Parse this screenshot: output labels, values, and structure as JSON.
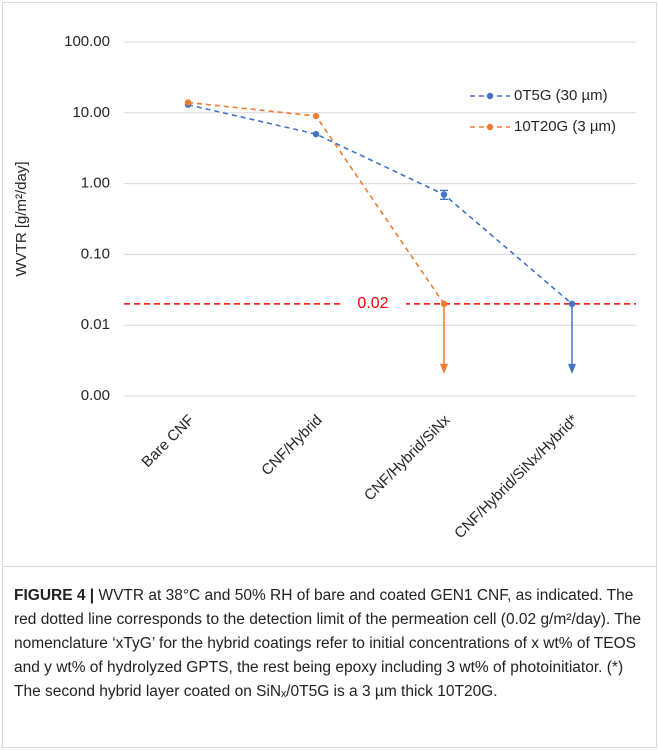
{
  "chart_data": {
    "type": "line",
    "log_y": true,
    "y_label": "WVTR [g/m²/day]",
    "categories": [
      "Bare CNF",
      "CNF/Hybrid",
      "CNF/Hybrid/SiNx",
      "CNF/Hybrid/SiNx/Hybrid*"
    ],
    "series": [
      {
        "name": "0T5G (30 µm)",
        "color": "#4472c4",
        "values": [
          13,
          5,
          0.7,
          0.02
        ],
        "errors": [
          null,
          null,
          0.1,
          null
        ]
      },
      {
        "name": "10T20G (3 µm)",
        "color": "#ed7d31",
        "values": [
          14,
          9,
          0.02,
          null
        ]
      }
    ],
    "ylim": [
      0.001,
      100
    ],
    "yticks": [
      {
        "value": 0.001,
        "label": "0.00"
      },
      {
        "value": 0.01,
        "label": "0.01"
      },
      {
        "value": 0.1,
        "label": "0.10"
      },
      {
        "value": 1,
        "label": "1.00"
      },
      {
        "value": 10,
        "label": "10.00"
      },
      {
        "value": 100,
        "label": "100.00"
      }
    ],
    "grid": true,
    "legend": "top-right",
    "detection_limit": {
      "value": 0.02,
      "color": "#ff0000"
    }
  },
  "caption": {
    "label": "FIGURE 4 |",
    "text": "WVTR at 38°C and 50% RH of bare and coated GEN1 CNF, as indicated. The red dotted line corresponds to the detection limit of the permeation cell (0.02 g/m²/day). The nomenclature ‘xTyG’ for the hybrid coatings refer to initial concentrations of x wt% of TEOS and y wt% of hydrolyzed GPTS, the rest being epoxy including 3 wt% of photoinitiator. (*) The second hybrid layer coated on SiNₓ/0T5G is a 3 µm thick 10T20G."
  }
}
